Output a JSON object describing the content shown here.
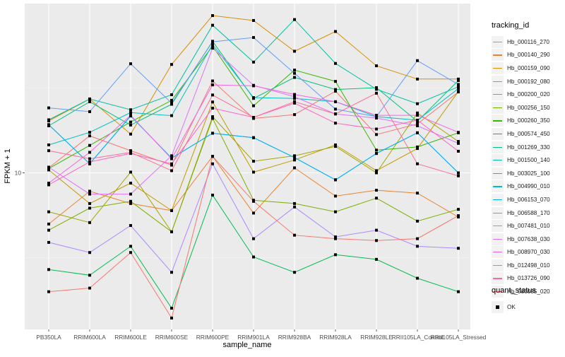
{
  "chart_data": {
    "type": "line",
    "title": "",
    "xlabel": "sample_name",
    "ylabel": "FPKM + 1",
    "yscale": "log10",
    "ylim": [
      1.2,
      99
    ],
    "y_tick_labels": [
      "10"
    ],
    "y_ticks": [
      10
    ],
    "grid": true,
    "legend_placement": "right",
    "categories": [
      "PB350LA",
      "RRIM600LA",
      "RRIM600LE",
      "RRIM600SE",
      "RRIM600PE",
      "RRIM901LA",
      "RRIM928BA",
      "RRIM928LA",
      "RRIM928LE",
      "RRII105LA_Control",
      "RRII105LA_Stressed"
    ],
    "legend_title": "tracking_id",
    "shape_legend_title": "quant_status",
    "shape_legend_items": [
      "OK"
    ],
    "series": [
      {
        "name": "Hb_000116_270",
        "color": "#F8766D",
        "values": [
          10.7,
          16.5,
          13.5,
          11.1,
          34.7,
          20.9,
          22.0,
          30.2,
          16.8,
          19.4,
          29.9
        ]
      },
      {
        "name": "Hb_000140_290",
        "color": "#EA8331",
        "values": [
          5.0,
          7.8,
          6.6,
          6.0,
          12.5,
          5.8,
          10.7,
          7.3,
          7.9,
          7.6,
          5.5
        ]
      },
      {
        "name": "Hb_000159_090",
        "color": "#D89000",
        "values": [
          20.2,
          27.2,
          16.9,
          43.4,
          84.1,
          78.7,
          51.9,
          67.8,
          42.6,
          35.6,
          35.6
        ]
      },
      {
        "name": "Hb_000192_080",
        "color": "#C09B00",
        "values": [
          10.4,
          6.6,
          8.7,
          6.0,
          26.1,
          10.1,
          11.9,
          14.6,
          10.3,
          13.9,
          30.1
        ]
      },
      {
        "name": "Hb_000200_020",
        "color": "#A3A500",
        "values": [
          5.9,
          5.1,
          10.1,
          4.5,
          21.4,
          11.7,
          12.6,
          14.3,
          10.0,
          22.5,
          15.3
        ]
      },
      {
        "name": "Hb_000256_150",
        "color": "#7CAE00",
        "values": [
          4.6,
          6.2,
          6.8,
          4.5,
          20.9,
          6.9,
          6.6,
          5.9,
          7.1,
          5.2,
          6.1
        ]
      },
      {
        "name": "Hb_000260_350",
        "color": "#39B600",
        "values": [
          10.6,
          14.5,
          19.9,
          26.7,
          55.6,
          24.8,
          40.2,
          34.5,
          13.6,
          14.2,
          17.2
        ]
      },
      {
        "name": "Hb_000574_450",
        "color": "#00BB4E",
        "values": [
          2.7,
          2.5,
          3.7,
          1.6,
          7.4,
          3.2,
          2.6,
          3.3,
          3.1,
          2.4,
          2.0
        ]
      },
      {
        "name": "Hb_001269_330",
        "color": "#00BF7D",
        "values": [
          18.9,
          26.2,
          19.1,
          25.3,
          59.4,
          27.4,
          36.4,
          30.9,
          31.7,
          20.1,
          34.9
        ]
      },
      {
        "name": "Hb_001500_140",
        "color": "#00C1A3",
        "values": [
          20.5,
          27.2,
          23.5,
          28.8,
          73.8,
          44.8,
          79.7,
          44.0,
          31.0,
          25.5,
          32.1
        ]
      },
      {
        "name": "Hb_003025_100",
        "color": "#00BFC4",
        "values": [
          14.6,
          17.3,
          22.6,
          21.7,
          56.8,
          27.7,
          27.4,
          26.2,
          21.4,
          20.4,
          31.3
        ]
      },
      {
        "name": "Hb_004990_010",
        "color": "#00B9E3",
        "values": [
          19.2,
          11.3,
          21.6,
          12.2,
          17.1,
          16.1,
          12.3,
          9.1,
          13.0,
          17.2,
          10.0
        ]
      },
      {
        "name": "Hb_006153_070",
        "color": "#00ADFA",
        "values": [
          19.2,
          11.3,
          21.6,
          12.2,
          17.1,
          16.1,
          12.3,
          9.1,
          13.0,
          17.2,
          10.0
        ]
      },
      {
        "name": "Hb_006588_170",
        "color": "#619CFF",
        "values": [
          24.1,
          22.9,
          43.8,
          25.7,
          59.0,
          62.5,
          38.5,
          23.7,
          21.4,
          45.7,
          33.1
        ]
      },
      {
        "name": "Hb_007481_010",
        "color": "#AE87FF",
        "values": [
          3.9,
          3.4,
          4.9,
          2.6,
          11.3,
          4.1,
          6.3,
          4.2,
          4.6,
          3.7,
          3.6
        ]
      },
      {
        "name": "Hb_007638_030",
        "color": "#DB72FB",
        "values": [
          10.8,
          7.5,
          7.5,
          12.6,
          54.1,
          32.7,
          28.0,
          22.2,
          21.0,
          18.9,
          14.9
        ]
      },
      {
        "name": "Hb_008970_030",
        "color": "#F564E3",
        "values": [
          8.7,
          13.2,
          21.8,
          12.1,
          32.9,
          32.5,
          28.9,
          26.2,
          21.8,
          21.8,
          17.3
        ]
      },
      {
        "name": "Hb_012498_010",
        "color": "#FF61C3",
        "values": [
          8.5,
          11.6,
          13.0,
          11.3,
          24.0,
          21.2,
          25.7,
          19.6,
          18.1,
          20.4,
          13.4
        ]
      },
      {
        "name": "Hb_013726_090",
        "color": "#FF6C91",
        "values": [
          13.5,
          12.1,
          13.2,
          10.3,
          28.7,
          21.2,
          26.2,
          22.2,
          29.4,
          11.3,
          9.6
        ]
      },
      {
        "name": "Hb_086085_020",
        "color": "#F8766D",
        "values": [
          2.0,
          2.1,
          3.4,
          1.4,
          12.5,
          6.8,
          4.3,
          4.1,
          4.0,
          4.1,
          5.6
        ]
      }
    ]
  }
}
